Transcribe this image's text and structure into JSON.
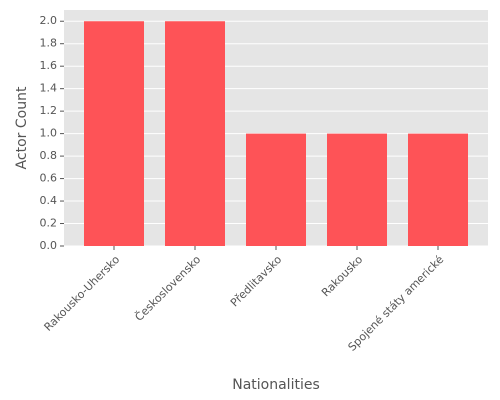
{
  "chart_data": {
    "type": "bar",
    "categories": [
      "Rakousko-Uhersko",
      "Československo",
      "Předlitavsko",
      "Rakousko",
      "Spojené státy americké"
    ],
    "values": [
      2,
      2,
      1,
      1,
      1
    ],
    "color": "#fe5357",
    "xlabel": "Nationalities",
    "ylabel": "Actor Count",
    "ylim": [
      0,
      2.1
    ],
    "yticks": [
      {
        "value": 0,
        "label": "0.0"
      },
      {
        "value": 0.2,
        "label": "0.2"
      },
      {
        "value": 0.4,
        "label": "0.4"
      },
      {
        "value": 0.6,
        "label": "0.6"
      },
      {
        "value": 0.8,
        "label": "0.8"
      },
      {
        "value": 1,
        "label": "1.0"
      },
      {
        "value": 1.2,
        "label": "1.2"
      },
      {
        "value": 1.4,
        "label": "1.4"
      },
      {
        "value": 1.6,
        "label": "1.6"
      },
      {
        "value": 1.8,
        "label": "1.8"
      },
      {
        "value": 2,
        "label": "2.0"
      }
    ],
    "grid": true
  }
}
